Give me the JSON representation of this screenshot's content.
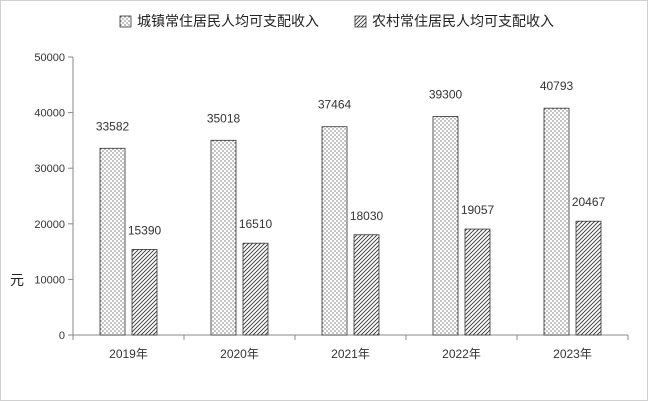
{
  "chart_data": {
    "type": "bar",
    "categories": [
      "2019年",
      "2020年",
      "2021年",
      "2022年",
      "2023年"
    ],
    "series": [
      {
        "name": "城镇常住居民人均可支配收入",
        "values": [
          33582,
          35018,
          37464,
          39300,
          40793
        ],
        "pattern": "dots"
      },
      {
        "name": "农村常住居民人均可支配收入",
        "values": [
          15390,
          16510,
          18030,
          19057,
          20467
        ],
        "pattern": "diagonal-hatch"
      }
    ],
    "ylabel": "元",
    "ylim": [
      0,
      50000
    ],
    "yticks": [
      "0",
      "10000",
      "20000",
      "30000",
      "40000",
      "50000"
    ],
    "grid": false,
    "legend_position": "top"
  }
}
